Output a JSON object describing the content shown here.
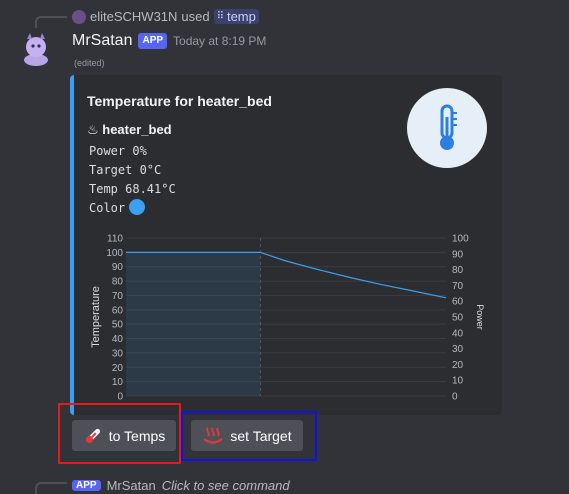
{
  "reply": {
    "user": "eliteSCHW31N",
    "used_text": "used",
    "command": "temp"
  },
  "message": {
    "author": "MrSatan",
    "badge": "APP",
    "timestamp": "Today at 8:19 PM",
    "edited": "(edited)"
  },
  "embed": {
    "accent_color": "#3ba0f0",
    "title": "Temperature for heater_bed",
    "field_name": "♨ heater_bed",
    "lines": {
      "power": "Power 0%",
      "target": "Target 0°C",
      "temp": "Temp 68.41°C",
      "color_label": "Color"
    },
    "color_swatch": "#3ba0f0",
    "thumbnail_icon": "thermometer-icon"
  },
  "chart_data": {
    "type": "line",
    "x_range": [
      0,
      1
    ],
    "ylabel": "Temperature",
    "y2label": "Power",
    "ylim": [
      0,
      110
    ],
    "y2lim": [
      0,
      100
    ],
    "yticks": [
      0,
      10,
      20,
      30,
      40,
      50,
      60,
      70,
      80,
      90,
      100,
      110
    ],
    "y2ticks": [
      0,
      10,
      20,
      30,
      40,
      50,
      60,
      70,
      80,
      90,
      100
    ],
    "grid": true,
    "marker_x": 0.42,
    "series": [
      {
        "color": "#3ba0f0",
        "axis": "left",
        "fill": true,
        "x": [
          0,
          0.42
        ],
        "y": [
          100,
          100
        ]
      },
      {
        "color": "#3ba0f0",
        "axis": "left",
        "fill": false,
        "x": [
          0.42,
          0.5,
          0.6,
          0.7,
          0.8,
          0.9,
          1.0
        ],
        "y": [
          100,
          94,
          88,
          82.5,
          77.5,
          73,
          68.4
        ]
      }
    ]
  },
  "buttons": {
    "to_temps": "to Temps",
    "set_target": "set Target"
  },
  "next_message": {
    "badge": "APP",
    "author": "MrSatan",
    "text": "Click to see command"
  }
}
